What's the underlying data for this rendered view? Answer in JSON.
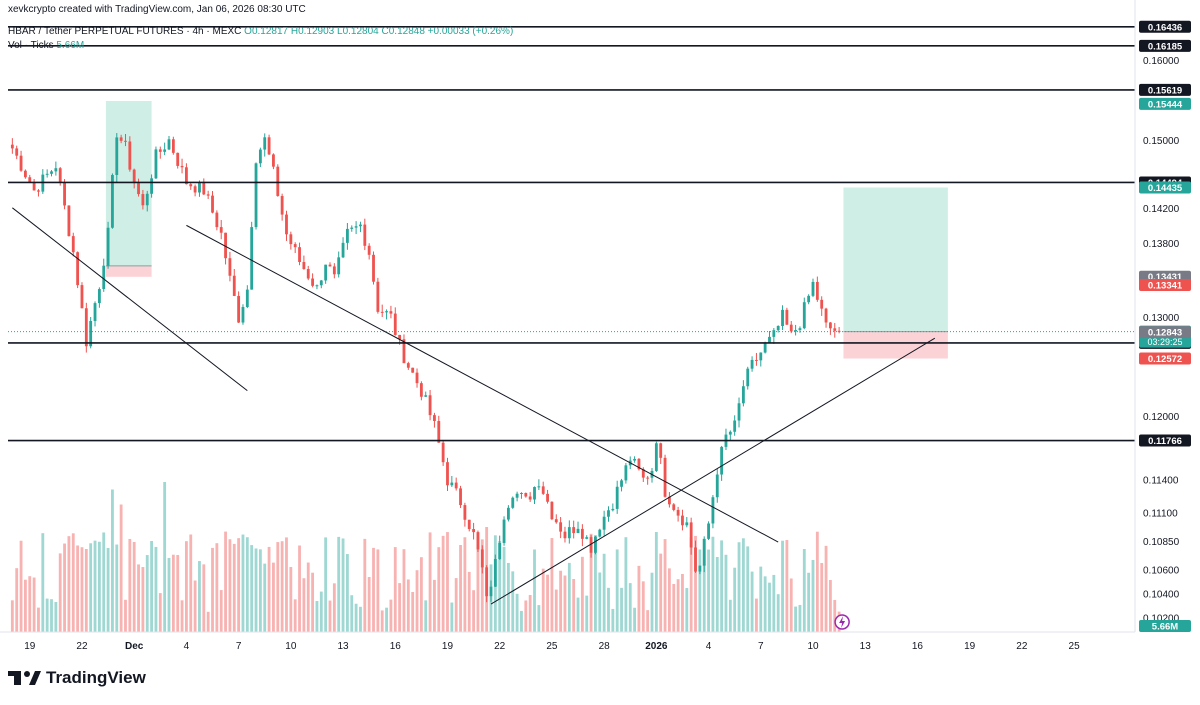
{
  "header": {
    "credit": "xevkcrypto created with TradingView.com, Jan 06, 2026 08:30 UTC",
    "symbol_line": "HBAR / Tether PERPETUAL FUTURES · 4h · MEXC",
    "ohlc": "O0.12817  H0.12903  L0.12804  C0.12848  +0.00033 (+0.26%)",
    "vol_label": "Vol · Ticks",
    "vol_value": "5.66M"
  },
  "watermark": {
    "logo_icon": "tradingview-logo-icon",
    "text": "TradingView"
  },
  "colors": {
    "up": "#26a69a",
    "down": "#ef5350",
    "up_vol": "#9fd7d2",
    "down_vol": "#f7b3b2",
    "target_zone": "#cfeee6",
    "stop_zone": "#fbd3d6",
    "grid_text": "#131722"
  },
  "chart_data": {
    "type": "candlestick",
    "title": "HBAR / Tether PERPETUAL FUTURES · 4h · MEXC",
    "xlabel": "",
    "ylabel": "",
    "ylim": [
      0.1008,
      0.165
    ],
    "y_scale": "log",
    "y_ticks": [
      "0.16000",
      "0.15000",
      "0.14200",
      "0.13800",
      "0.13000",
      "0.12000",
      "0.11400",
      "0.11100",
      "0.10850",
      "0.10600",
      "0.10400",
      "0.10200"
    ],
    "x_ticks": [
      "19",
      "22",
      "Dec",
      "4",
      "7",
      "10",
      "13",
      "16",
      "19",
      "22",
      "25",
      "28",
      "2026",
      "4",
      "7",
      "10",
      "13",
      "16",
      "19",
      "22",
      "25"
    ],
    "x_tick_bold": [
      "Dec",
      "2026"
    ],
    "grid": false,
    "last_candle_index": 190,
    "horizontal_levels": [
      {
        "price": 0.16436,
        "label": "0.16436",
        "style": "black"
      },
      {
        "price": 0.16185,
        "label": "0.16185",
        "style": "black"
      },
      {
        "price": 0.15619,
        "label": "0.15619",
        "style": "black"
      },
      {
        "price": 0.14494,
        "label": "0.14494",
        "style": "black"
      },
      {
        "price": 0.12732,
        "label": "0.12732",
        "style": "black"
      },
      {
        "price": 0.11766,
        "label": "0.11766",
        "style": "black"
      }
    ],
    "price_badges": [
      {
        "price": 0.15444,
        "label": "0.15444",
        "style": "green"
      },
      {
        "price": 0.14435,
        "label": "0.14435",
        "style": "green"
      },
      {
        "price": 0.13431,
        "label": "0.13431",
        "style": "gray"
      },
      {
        "price": 0.13341,
        "label": "0.13341",
        "style": "red"
      },
      {
        "price": 0.12848,
        "label": "0.12848",
        "style": "green",
        "sub": "03:29:25"
      },
      {
        "price": 0.12843,
        "label": "0.12843",
        "style": "gray"
      },
      {
        "price": 0.12572,
        "label": "0.12572",
        "style": "red"
      }
    ],
    "volume_badge": "5.66M",
    "position_boxes": [
      {
        "x_from": 21.5,
        "x_to": 32,
        "entry": 0.1355,
        "target": 0.1548,
        "stop": 0.1343
      },
      {
        "x_from": 191,
        "x_to": 215,
        "entry": 0.12848,
        "target": 0.14435,
        "stop": 0.12572
      }
    ],
    "trendlines": [
      {
        "x1": 0,
        "y1": 0.142,
        "x2": 54,
        "y2": 0.1225
      },
      {
        "x1": 40,
        "y1": 0.14,
        "x2": 176,
        "y2": 0.1084
      },
      {
        "x1": 110,
        "y1": 0.1031,
        "x2": 212,
        "y2": 0.1278
      }
    ],
    "anchors": [
      [
        0,
        0.149
      ],
      [
        5,
        0.144
      ],
      [
        10,
        0.147
      ],
      [
        14,
        0.137
      ],
      [
        17,
        0.1275
      ],
      [
        20,
        0.1335
      ],
      [
        22,
        0.139
      ],
      [
        24,
        0.151
      ],
      [
        26,
        0.149
      ],
      [
        28,
        0.145
      ],
      [
        30,
        0.142
      ],
      [
        33,
        0.148
      ],
      [
        36,
        0.15
      ],
      [
        40,
        0.145
      ],
      [
        44,
        0.144
      ],
      [
        48,
        0.139
      ],
      [
        50,
        0.134
      ],
      [
        52,
        0.13
      ],
      [
        54,
        0.133
      ],
      [
        56,
        0.148
      ],
      [
        58,
        0.15
      ],
      [
        60,
        0.146
      ],
      [
        63,
        0.139
      ],
      [
        66,
        0.136
      ],
      [
        70,
        0.133
      ],
      [
        72,
        0.136
      ],
      [
        74,
        0.134
      ],
      [
        77,
        0.139
      ],
      [
        80,
        0.14
      ],
      [
        82,
        0.137
      ],
      [
        84,
        0.131
      ],
      [
        87,
        0.13
      ],
      [
        89,
        0.127
      ],
      [
        91,
        0.125
      ],
      [
        94,
        0.1225
      ],
      [
        97,
        0.119
      ],
      [
        100,
        0.114
      ],
      [
        103,
        0.112
      ],
      [
        106,
        0.109
      ],
      [
        108,
        0.106
      ],
      [
        109,
        0.1033
      ],
      [
        111,
        0.1065
      ],
      [
        113,
        0.111
      ],
      [
        115,
        0.113
      ],
      [
        118,
        0.112
      ],
      [
        121,
        0.114
      ],
      [
        124,
        0.111
      ],
      [
        127,
        0.109
      ],
      [
        130,
        0.11
      ],
      [
        133,
        0.108
      ],
      [
        135,
        0.11
      ],
      [
        138,
        0.112
      ],
      [
        140,
        0.114
      ],
      [
        142,
        0.116
      ],
      [
        145,
        0.114
      ],
      [
        147,
        0.115
      ],
      [
        148,
        0.118
      ],
      [
        150,
        0.113
      ],
      [
        153,
        0.111
      ],
      [
        155,
        0.11
      ],
      [
        157,
        0.106
      ],
      [
        158,
        0.1063
      ],
      [
        160,
        0.11
      ],
      [
        162,
        0.115
      ],
      [
        164,
        0.118
      ],
      [
        166,
        0.119
      ],
      [
        168,
        0.123
      ],
      [
        170,
        0.125
      ],
      [
        173,
        0.127
      ],
      [
        175,
        0.128
      ],
      [
        177,
        0.13
      ],
      [
        179,
        0.128
      ],
      [
        181,
        0.1295
      ],
      [
        184,
        0.1335
      ],
      [
        185,
        0.132
      ],
      [
        187,
        0.129
      ],
      [
        190,
        0.12848
      ]
    ],
    "volume_peaks": [
      {
        "i": 23,
        "v": 0.95
      },
      {
        "i": 25,
        "v": 0.85
      },
      {
        "i": 35,
        "v": 1.0
      },
      {
        "i": 41,
        "v": 0.65
      },
      {
        "i": 109,
        "v": 0.7
      },
      {
        "i": 120,
        "v": 0.55
      },
      {
        "i": 158,
        "v": 0.55
      },
      {
        "i": 162,
        "v": 0.5
      },
      {
        "i": 184,
        "v": 0.48
      }
    ]
  }
}
